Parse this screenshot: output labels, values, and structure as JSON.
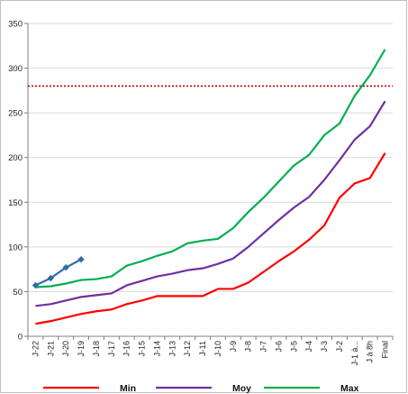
{
  "chart_data": {
    "type": "line",
    "categories": [
      "J-22",
      "J-21",
      "J-20",
      "J-19",
      "J-18",
      "J-17",
      "J-16",
      "J-15",
      "J-14",
      "J-13",
      "J-12",
      "J-11",
      "J-10",
      "J-9",
      "J-8",
      "J-7",
      "J-6",
      "J-5",
      "J-4",
      "J-3",
      "J-2",
      "J-1 à...",
      "J à 8h",
      "Final"
    ],
    "ylim": [
      0,
      350
    ],
    "yticks": [
      0,
      50,
      100,
      150,
      200,
      250,
      300,
      350
    ],
    "grid": true,
    "legend_position": "bottom",
    "series": [
      {
        "name": "Min",
        "color": "#ff0000",
        "values": [
          14,
          17,
          21,
          25,
          28,
          30,
          36,
          40,
          45,
          45,
          45,
          45,
          53,
          53,
          60,
          72,
          84,
          95,
          108,
          124,
          155,
          171,
          177,
          205
        ],
        "in_legend": true
      },
      {
        "name": "Moy",
        "color": "#7030a0",
        "values": [
          34,
          36,
          40,
          44,
          46,
          48,
          57,
          62,
          67,
          70,
          74,
          76,
          81,
          87,
          100,
          115,
          130,
          144,
          156,
          175,
          197,
          220,
          235,
          263
        ],
        "in_legend": true
      },
      {
        "name": "Max",
        "color": "#00b050",
        "values": [
          55,
          56,
          59,
          63,
          64,
          67,
          79,
          84,
          90,
          95,
          104,
          107,
          109,
          121,
          139,
          155,
          173,
          191,
          203,
          225,
          238,
          269,
          292,
          321
        ],
        "in_legend": true
      },
      {
        "name": "",
        "color": "#2e6da4",
        "values": [
          57,
          65,
          77,
          86,
          null,
          null,
          null,
          null,
          null,
          null,
          null,
          null,
          null,
          null,
          null,
          null,
          null,
          null,
          null,
          null,
          null,
          null,
          null,
          null
        ],
        "markers": true,
        "in_legend": false
      }
    ],
    "reference_line": {
      "value": 280,
      "color": "#c00000",
      "style": "dotted"
    }
  }
}
